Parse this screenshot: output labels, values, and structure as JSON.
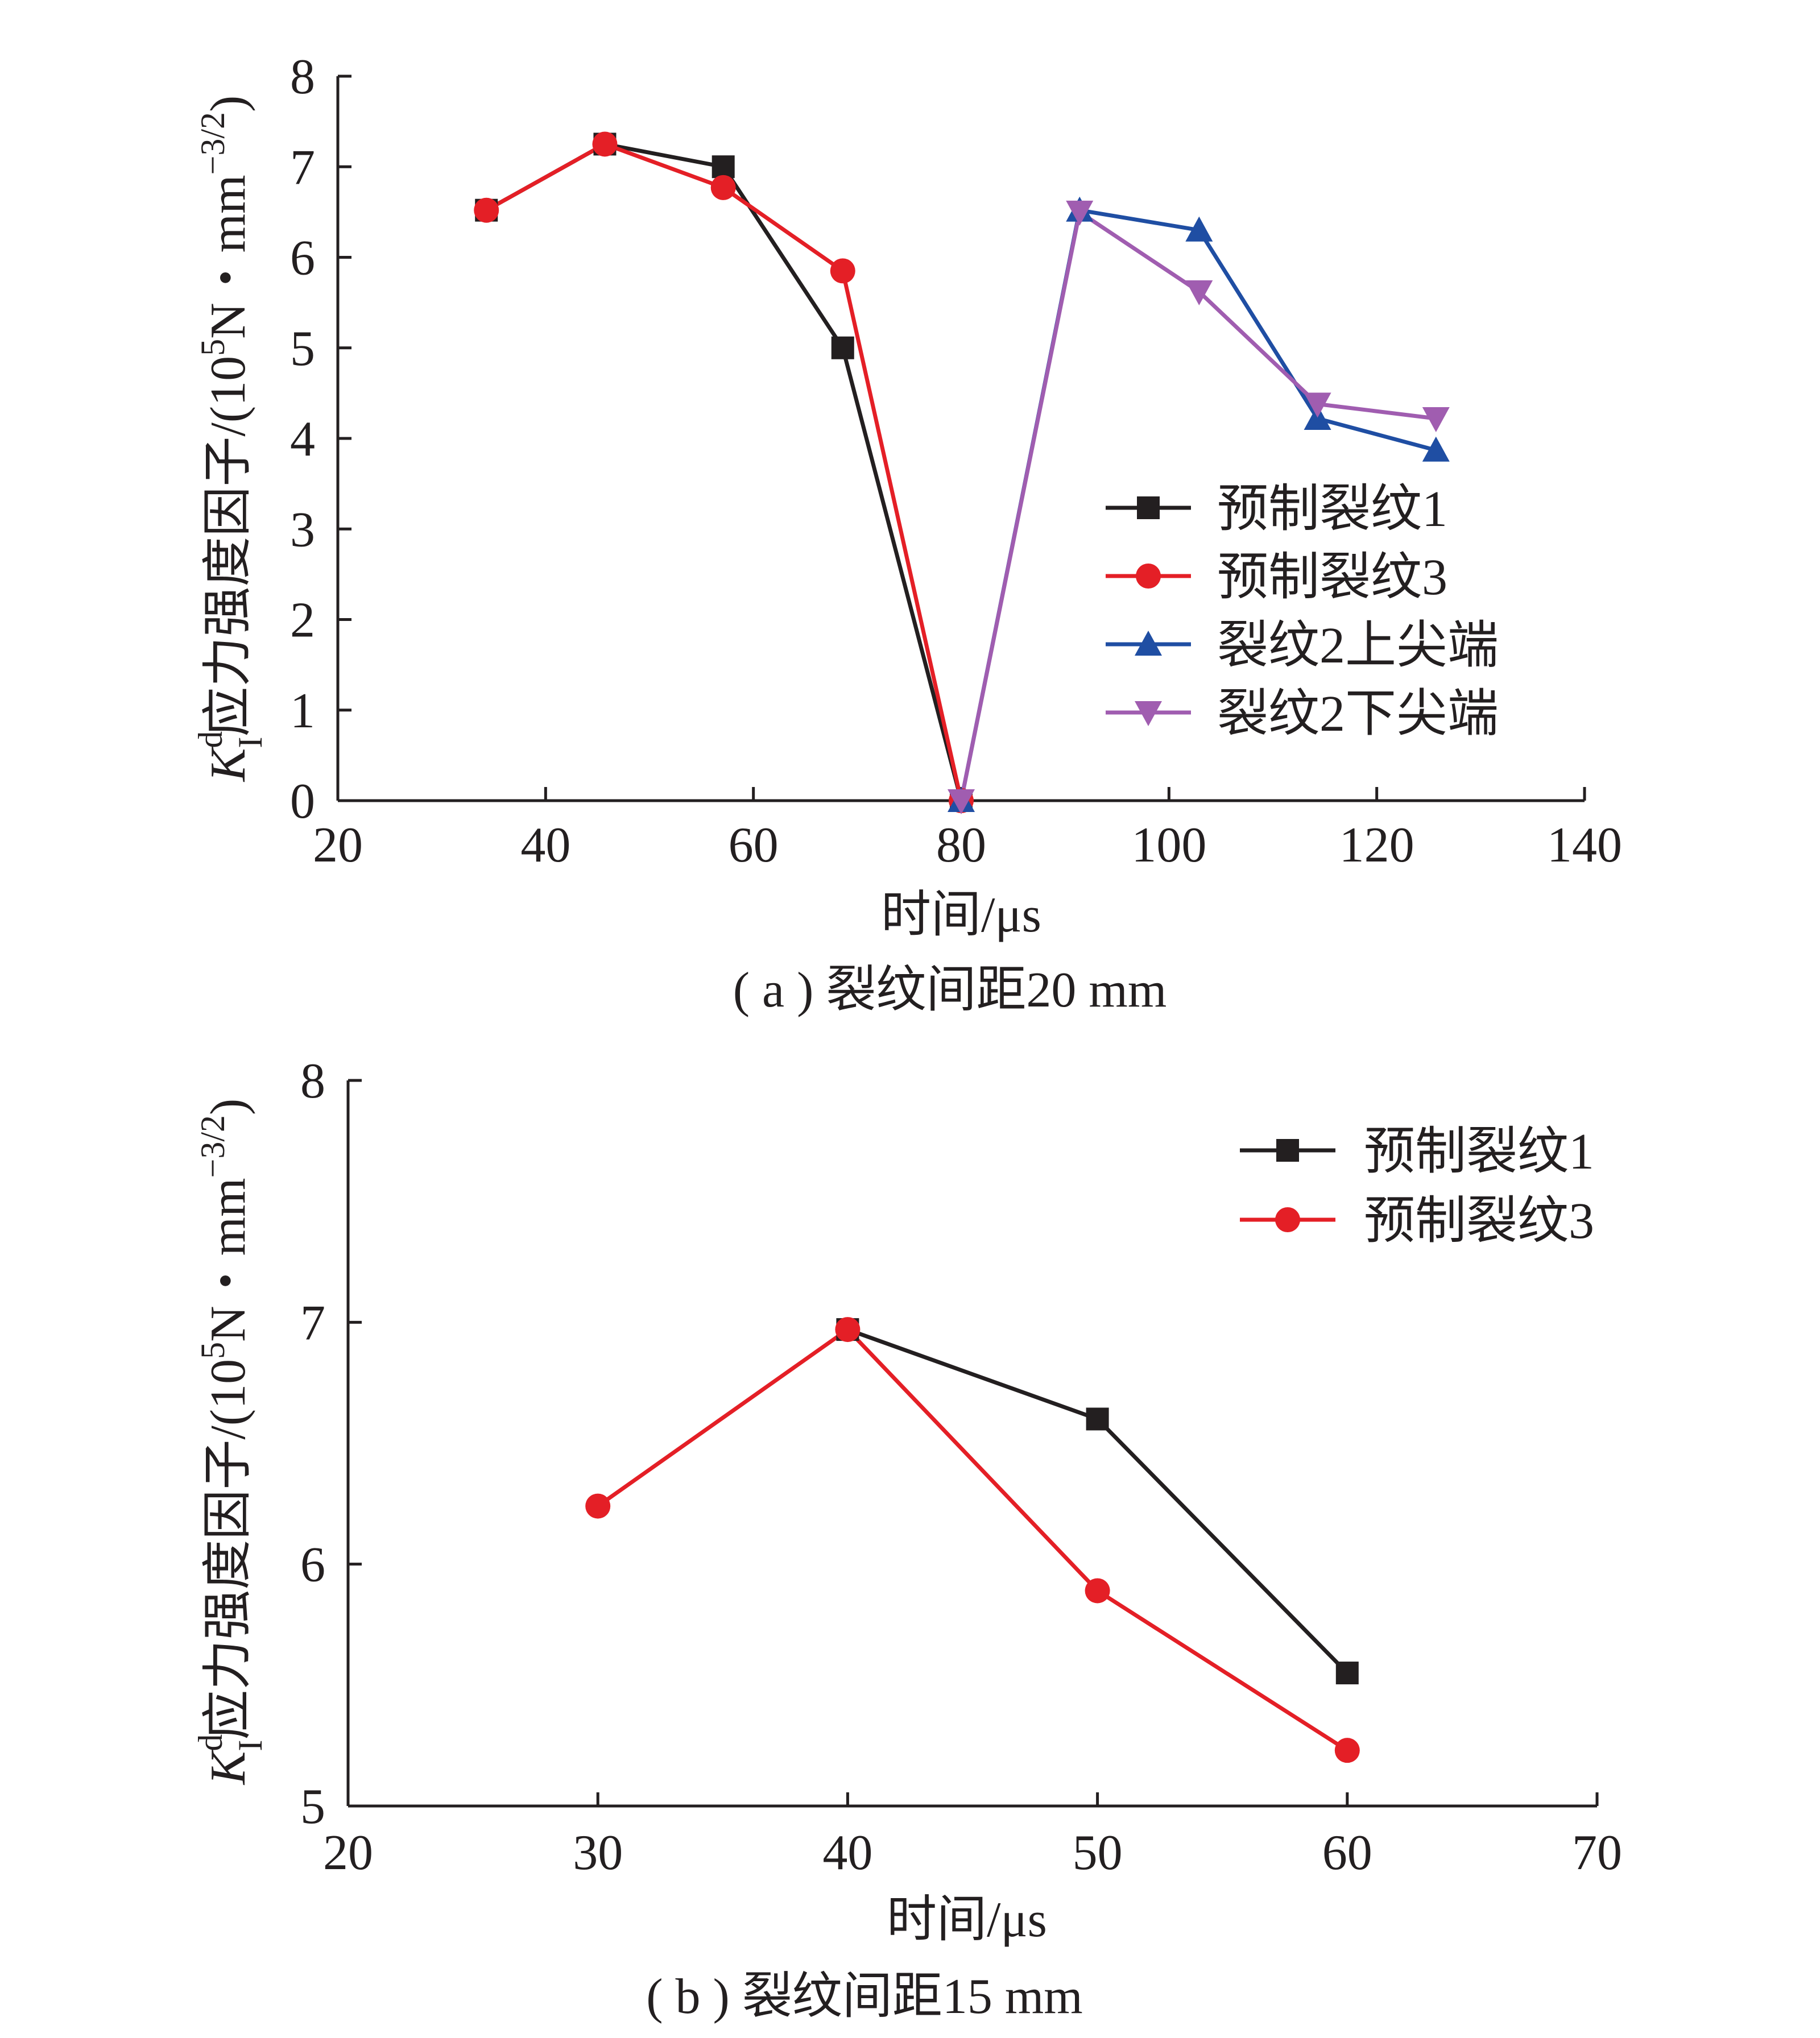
{
  "chart_data": [
    {
      "type": "line",
      "caption": "( a ) 裂纹间距20 mm",
      "xlabel": "时间/μs",
      "ylabel": {
        "symbol": "K",
        "sup": "d",
        "sub": "I",
        "text": "应力强度因子/(10",
        "pow": "5",
        "text2": "N・mm",
        "pow2": "−3/2",
        "close": ")"
      },
      "xlim": [
        20,
        140
      ],
      "ylim": [
        0,
        8
      ],
      "xticks": [
        "20",
        "40",
        "60",
        "80",
        "100",
        "120",
        "140"
      ],
      "yticks": [
        "0",
        "1",
        "2",
        "3",
        "4",
        "5",
        "6",
        "7",
        "8"
      ],
      "grid": false,
      "legend_position": "center-right",
      "series": [
        {
          "name": "预制裂纹1",
          "color": "#231f20",
          "marker": "square",
          "x": [
            34.3,
            45.7,
            57.1,
            68.6,
            80
          ],
          "y": [
            6.52,
            7.25,
            7.0,
            5.0,
            0
          ]
        },
        {
          "name": "预制裂纹3",
          "color": "#e41f26",
          "marker": "circle",
          "x": [
            34.3,
            45.7,
            57.1,
            68.6,
            80
          ],
          "y": [
            6.52,
            7.25,
            6.77,
            5.85,
            0
          ]
        },
        {
          "name": "裂纹2上尖端",
          "color": "#1f4ea3",
          "marker": "triangle-up",
          "x": [
            80,
            91.4,
            102.9,
            114.3,
            125.7
          ],
          "y": [
            0,
            6.52,
            6.3,
            4.22,
            3.87
          ]
        },
        {
          "name": "裂纹2下尖端",
          "color": "#a05db0",
          "marker": "triangle-down",
          "x": [
            80,
            91.4,
            102.9,
            114.3,
            125.7
          ],
          "y": [
            0,
            6.5,
            5.62,
            4.38,
            4.22
          ]
        }
      ]
    },
    {
      "type": "line",
      "caption": "( b ) 裂纹间距15 mm",
      "xlabel": "时间/μs",
      "ylabel": {
        "symbol": "K",
        "sup": "d",
        "sub": "I",
        "text": "应力强度因子/(10",
        "pow": "5",
        "text2": "N・mm",
        "pow2": "−3/2",
        "close": ")"
      },
      "xlim": [
        20,
        70
      ],
      "ylim": [
        5,
        8
      ],
      "xticks": [
        "20",
        "30",
        "40",
        "50",
        "60",
        "70"
      ],
      "yticks": [
        "5",
        "6",
        "7",
        "8"
      ],
      "grid": false,
      "legend_position": "top-right",
      "series": [
        {
          "name": "预制裂纹1",
          "color": "#231f20",
          "marker": "square",
          "x": [
            40,
            50,
            60
          ],
          "y": [
            6.97,
            6.6,
            5.55
          ]
        },
        {
          "name": "预制裂纹3",
          "color": "#e41f26",
          "marker": "circle",
          "x": [
            30,
            40,
            50,
            60
          ],
          "y": [
            6.24,
            6.97,
            5.89,
            5.23
          ]
        }
      ]
    }
  ]
}
